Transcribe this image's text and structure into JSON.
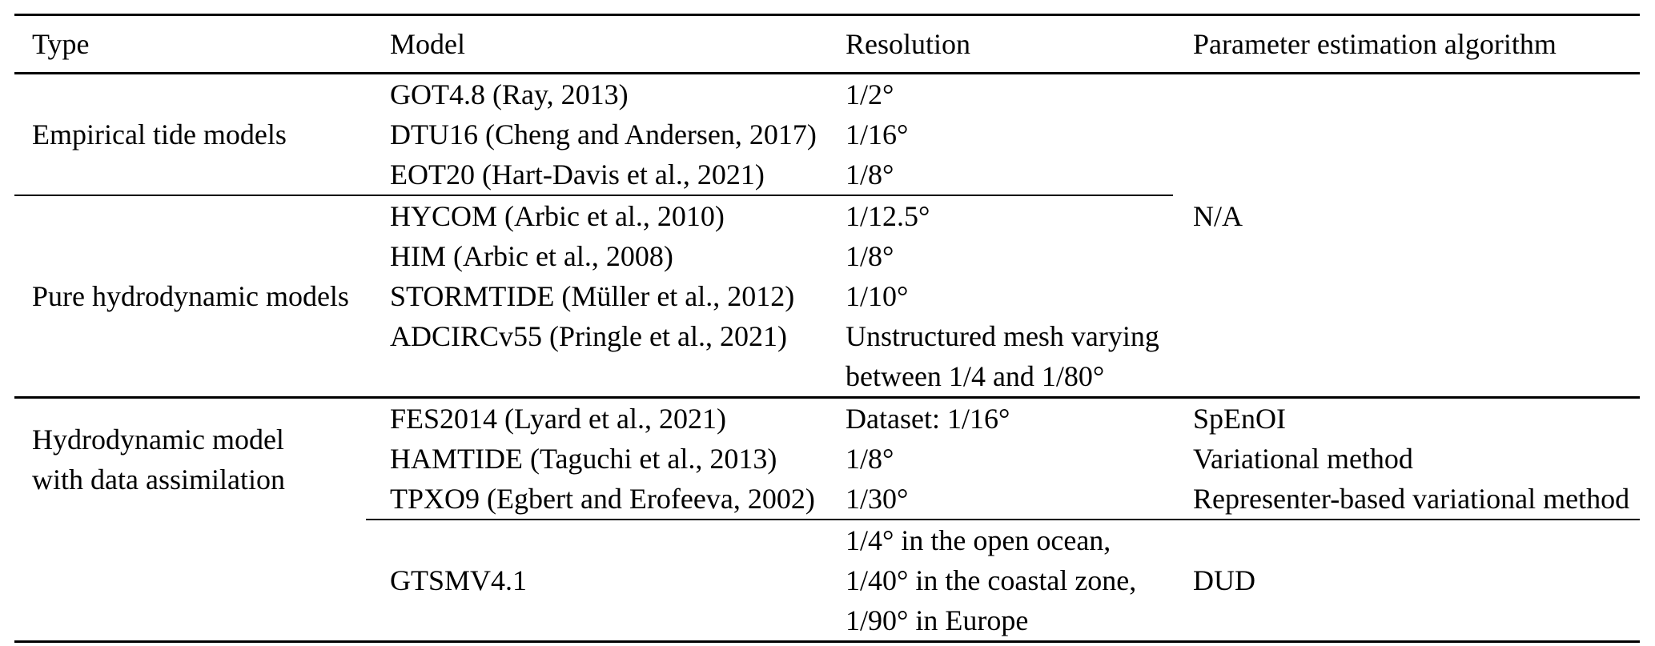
{
  "table": {
    "header": {
      "type": "Type",
      "model": "Model",
      "resolution": "Resolution",
      "algorithm": "Parameter estimation algorithm"
    },
    "shared_algorithm_groups_1_2": "N/A",
    "groups": [
      {
        "type": "Empirical tide models",
        "rows": [
          {
            "model": "GOT4.8 (Ray, 2013)",
            "resolution": "1/2°"
          },
          {
            "model": "DTU16 (Cheng and Andersen, 2017)",
            "resolution": "1/16°"
          },
          {
            "model": "EOT20 (Hart-Davis et al., 2021)",
            "resolution": "1/8°"
          }
        ]
      },
      {
        "type": "Pure hydrodynamic models",
        "rows": [
          {
            "model": "HYCOM (Arbic et al., 2010)",
            "resolution": "1/12.5°"
          },
          {
            "model": "HIM (Arbic et al., 2008)",
            "resolution": "1/8°"
          },
          {
            "model": "STORMTIDE (Müller et al., 2012)",
            "resolution": "1/10°"
          },
          {
            "model": "ADCIRCv55 (Pringle et al., 2021)",
            "resolution": "Unstructured mesh varying between 1/4 and 1/80°"
          }
        ]
      },
      {
        "type": "Hydrodynamic model with data assimilation",
        "rows": [
          {
            "model": "FES2014 (Lyard et al., 2021)",
            "resolution": "Dataset: 1/16°",
            "algorithm": "SpEnOI"
          },
          {
            "model": "HAMTIDE (Taguchi et al., 2013)",
            "resolution": "1/8°",
            "algorithm": "Variational method"
          },
          {
            "model": "TPXO9 (Egbert and Erofeeva, 2002)",
            "resolution": "1/30°",
            "algorithm": "Representer-based variational method"
          }
        ],
        "subgroup_rows": [
          {
            "model": "GTSMV4.1",
            "resolution": "1/4° in the open ocean, 1/40° in the coastal zone, 1/90° in Europe",
            "algorithm": "DUD"
          }
        ]
      }
    ]
  }
}
